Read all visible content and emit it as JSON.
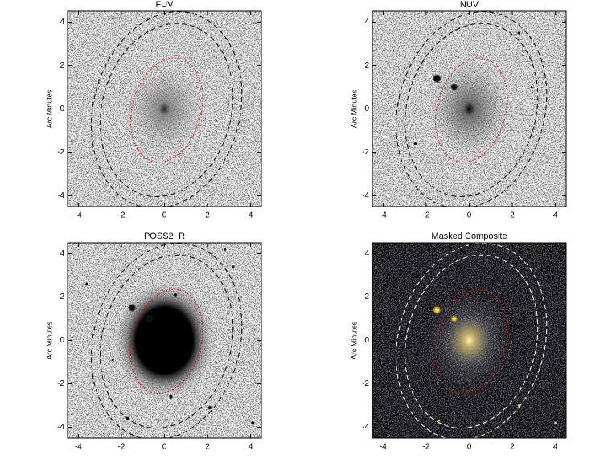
{
  "chart_data": [
    {
      "type": "image",
      "title": "FUV",
      "ylabel": "Arc Minutes",
      "xlim": [
        -4.5,
        4.5
      ],
      "ylim": [
        -4.5,
        4.5
      ],
      "xticks": [
        -4,
        -2,
        0,
        2,
        4
      ],
      "yticks": [
        -4,
        -2,
        0,
        2,
        4
      ]
    },
    {
      "type": "image",
      "title": "NUV",
      "ylabel": "Arc Minutes",
      "xlim": [
        -4.5,
        4.5
      ],
      "ylim": [
        -4.5,
        4.5
      ],
      "xticks": [
        -4,
        -2,
        0,
        2,
        4
      ],
      "yticks": [
        -4,
        -2,
        0,
        2,
        4
      ]
    },
    {
      "type": "image",
      "title": "POSS2−R",
      "ylabel": "Arc Minutes",
      "xlim": [
        -4.5,
        4.5
      ],
      "ylim": [
        -4.5,
        4.5
      ],
      "xticks": [
        -4,
        -2,
        0,
        2,
        4
      ],
      "yticks": [
        -4,
        -2,
        0,
        2,
        4
      ]
    },
    {
      "type": "image",
      "title": "Masked Composite",
      "ylabel": "Arc Minutes",
      "xlim": [
        -4.5,
        4.5
      ],
      "ylim": [
        -4.5,
        4.5
      ],
      "xticks": [
        -4,
        -2,
        0,
        2,
        4
      ],
      "yticks": [
        -4,
        -2,
        0,
        2,
        4
      ]
    }
  ]
}
